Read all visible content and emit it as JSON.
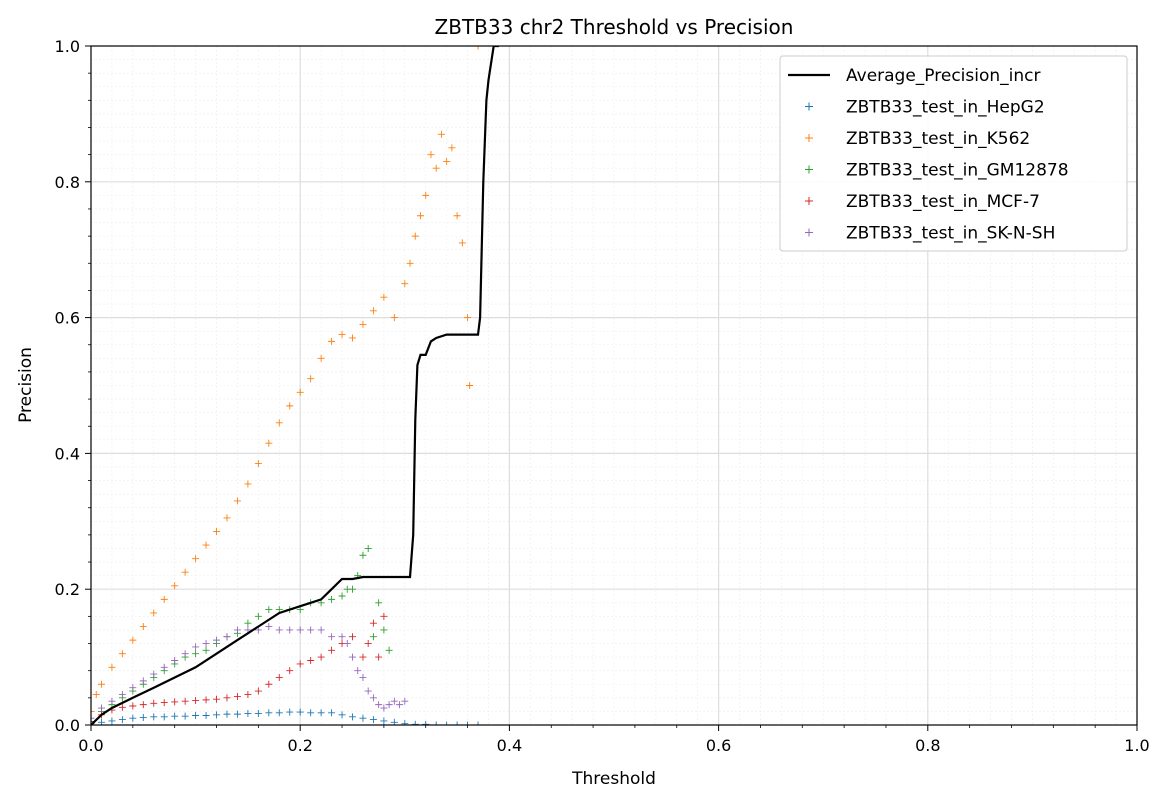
{
  "chart_data": {
    "type": "scatter",
    "title": "ZBTB33 chr2 Threshold vs Precision",
    "xlabel": "Threshold",
    "ylabel": "Precision",
    "xlim": [
      0,
      1
    ],
    "ylim": [
      0,
      1
    ],
    "xticks": [
      "0.0",
      "0.2",
      "0.4",
      "0.6",
      "0.8",
      "1.0"
    ],
    "yticks": [
      "0.0",
      "0.2",
      "0.4",
      "0.6",
      "0.8",
      "1.0"
    ],
    "grid": true,
    "legend_position": "top-right",
    "series": [
      {
        "name": "Average_Precision_incr",
        "kind": "line",
        "color": "#000000",
        "x": [
          0,
          0.01,
          0.02,
          0.04,
          0.06,
          0.08,
          0.1,
          0.12,
          0.14,
          0.16,
          0.18,
          0.2,
          0.21,
          0.22,
          0.23,
          0.24,
          0.25,
          0.26,
          0.28,
          0.3,
          0.305,
          0.308,
          0.31,
          0.312,
          0.315,
          0.32,
          0.325,
          0.33,
          0.34,
          0.35,
          0.36,
          0.37,
          0.372,
          0.375,
          0.378,
          0.38,
          0.385,
          0.39
        ],
        "y": [
          0,
          0.015,
          0.025,
          0.04,
          0.055,
          0.07,
          0.085,
          0.105,
          0.125,
          0.145,
          0.165,
          0.175,
          0.18,
          0.185,
          0.2,
          0.215,
          0.215,
          0.218,
          0.218,
          0.218,
          0.218,
          0.28,
          0.45,
          0.53,
          0.545,
          0.545,
          0.565,
          0.57,
          0.575,
          0.575,
          0.575,
          0.575,
          0.6,
          0.8,
          0.92,
          0.95,
          1.0,
          1.0
        ]
      },
      {
        "name": "ZBTB33_test_in_HepG2",
        "kind": "scatter",
        "color": "#1f77b4",
        "x": [
          0,
          0.01,
          0.02,
          0.03,
          0.04,
          0.05,
          0.06,
          0.07,
          0.08,
          0.09,
          0.1,
          0.11,
          0.12,
          0.13,
          0.14,
          0.15,
          0.16,
          0.17,
          0.18,
          0.19,
          0.2,
          0.21,
          0.22,
          0.23,
          0.24,
          0.25,
          0.26,
          0.27,
          0.28,
          0.29,
          0.3,
          0.31,
          0.32,
          0.33,
          0.34,
          0.35,
          0.36,
          0.37
        ],
        "y": [
          0.002,
          0.004,
          0.006,
          0.008,
          0.01,
          0.011,
          0.012,
          0.012,
          0.013,
          0.013,
          0.014,
          0.014,
          0.015,
          0.016,
          0.016,
          0.017,
          0.017,
          0.018,
          0.018,
          0.019,
          0.019,
          0.018,
          0.018,
          0.018,
          0.015,
          0.012,
          0.01,
          0.008,
          0.006,
          0.004,
          0.002,
          0.001,
          0.001,
          0,
          0,
          0,
          0,
          0
        ]
      },
      {
        "name": "ZBTB33_test_in_K562",
        "kind": "scatter",
        "color": "#ff7f0e",
        "x": [
          0,
          0.005,
          0.01,
          0.02,
          0.03,
          0.04,
          0.05,
          0.06,
          0.07,
          0.08,
          0.09,
          0.1,
          0.11,
          0.12,
          0.13,
          0.14,
          0.15,
          0.16,
          0.17,
          0.18,
          0.19,
          0.2,
          0.21,
          0.22,
          0.23,
          0.24,
          0.25,
          0.26,
          0.27,
          0.28,
          0.29,
          0.3,
          0.305,
          0.31,
          0.315,
          0.32,
          0.325,
          0.33,
          0.335,
          0.34,
          0.345,
          0.35,
          0.355,
          0.36,
          0.362,
          0.37
        ],
        "y": [
          0.02,
          0.045,
          0.06,
          0.085,
          0.105,
          0.125,
          0.145,
          0.165,
          0.185,
          0.205,
          0.225,
          0.245,
          0.265,
          0.285,
          0.305,
          0.33,
          0.355,
          0.385,
          0.415,
          0.445,
          0.47,
          0.49,
          0.51,
          0.54,
          0.565,
          0.575,
          0.57,
          0.59,
          0.61,
          0.63,
          0.6,
          0.65,
          0.68,
          0.72,
          0.75,
          0.78,
          0.84,
          0.82,
          0.87,
          0.83,
          0.85,
          0.75,
          0.71,
          0.6,
          0.5,
          1.0
        ]
      },
      {
        "name": "ZBTB33_test_in_GM12878",
        "kind": "scatter",
        "color": "#2ca02c",
        "x": [
          0,
          0.01,
          0.02,
          0.03,
          0.04,
          0.05,
          0.06,
          0.07,
          0.08,
          0.09,
          0.1,
          0.11,
          0.12,
          0.13,
          0.14,
          0.15,
          0.16,
          0.17,
          0.18,
          0.19,
          0.2,
          0.21,
          0.22,
          0.23,
          0.24,
          0.245,
          0.25,
          0.255,
          0.26,
          0.265,
          0.27,
          0.275,
          0.28,
          0.285
        ],
        "y": [
          0.005,
          0.02,
          0.03,
          0.04,
          0.05,
          0.06,
          0.07,
          0.08,
          0.09,
          0.1,
          0.105,
          0.11,
          0.12,
          0.13,
          0.135,
          0.15,
          0.16,
          0.17,
          0.17,
          0.17,
          0.17,
          0.18,
          0.18,
          0.185,
          0.19,
          0.2,
          0.2,
          0.22,
          0.25,
          0.26,
          0.13,
          0.18,
          0.14,
          0.11
        ]
      },
      {
        "name": "ZBTB33_test_in_MCF-7",
        "kind": "scatter",
        "color": "#d62728",
        "x": [
          0,
          0.01,
          0.02,
          0.03,
          0.04,
          0.05,
          0.06,
          0.07,
          0.08,
          0.09,
          0.1,
          0.11,
          0.12,
          0.13,
          0.14,
          0.15,
          0.16,
          0.17,
          0.18,
          0.19,
          0.2,
          0.21,
          0.22,
          0.23,
          0.24,
          0.25,
          0.26,
          0.265,
          0.27,
          0.275,
          0.28
        ],
        "y": [
          0.005,
          0.015,
          0.022,
          0.026,
          0.028,
          0.03,
          0.032,
          0.033,
          0.034,
          0.035,
          0.036,
          0.037,
          0.038,
          0.04,
          0.042,
          0.045,
          0.05,
          0.06,
          0.07,
          0.08,
          0.09,
          0.095,
          0.1,
          0.11,
          0.12,
          0.13,
          0.1,
          0.12,
          0.15,
          0.1,
          0.16
        ]
      },
      {
        "name": "ZBTB33_test_in_SK-N-SH",
        "kind": "scatter",
        "color": "#9467bd",
        "x": [
          0,
          0.01,
          0.02,
          0.03,
          0.04,
          0.05,
          0.06,
          0.07,
          0.08,
          0.09,
          0.1,
          0.11,
          0.12,
          0.13,
          0.14,
          0.15,
          0.16,
          0.17,
          0.18,
          0.19,
          0.2,
          0.21,
          0.22,
          0.23,
          0.24,
          0.245,
          0.25,
          0.255,
          0.26,
          0.265,
          0.27,
          0.275,
          0.28,
          0.285,
          0.29,
          0.295,
          0.3
        ],
        "y": [
          0.01,
          0.025,
          0.035,
          0.045,
          0.055,
          0.065,
          0.075,
          0.085,
          0.095,
          0.105,
          0.115,
          0.12,
          0.125,
          0.13,
          0.14,
          0.14,
          0.14,
          0.145,
          0.14,
          0.14,
          0.14,
          0.14,
          0.14,
          0.13,
          0.13,
          0.12,
          0.1,
          0.08,
          0.07,
          0.05,
          0.04,
          0.03,
          0.025,
          0.03,
          0.035,
          0.03,
          0.035
        ]
      }
    ]
  }
}
